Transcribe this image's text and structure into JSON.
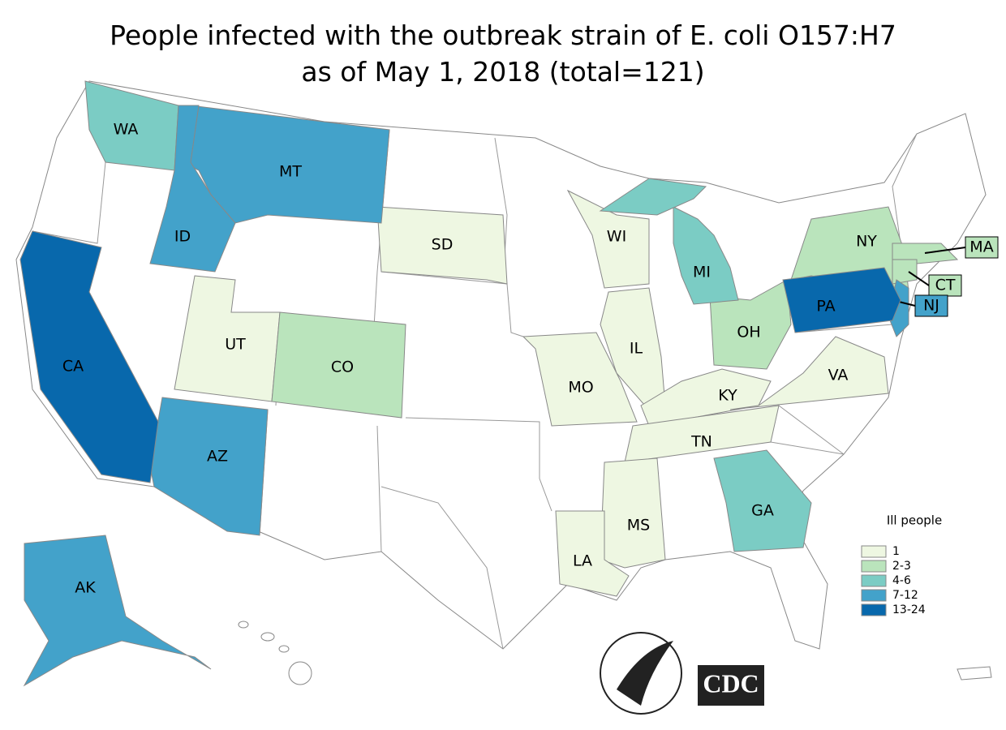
{
  "title": [
    "People infected with the outbreak strain of E. coli O157:H7",
    "as of May 1, 2018 (total=121)"
  ],
  "legend": {
    "title": "Ill people",
    "items": [
      {
        "label": "1",
        "color": "#eef7e2",
        "states": [
          "SD",
          "UT",
          "WI",
          "IL",
          "MO",
          "KY",
          "VA",
          "TN",
          "MS",
          "LA"
        ]
      },
      {
        "label": "2-3",
        "color": "#bae4bc",
        "states": [
          "NY",
          "MA",
          "CT",
          "OH",
          "CO"
        ]
      },
      {
        "label": "4-6",
        "color": "#7bccc4",
        "states": [
          "WA",
          "MI",
          "GA"
        ]
      },
      {
        "label": "7-12",
        "color": "#43a2ca",
        "states": [
          "MT",
          "ID",
          "AZ",
          "NJ",
          "AK"
        ]
      },
      {
        "label": "13-24",
        "color": "#0868ac",
        "states": [
          "CA",
          "PA"
        ]
      }
    ]
  },
  "logos": {
    "cdc": "CDC"
  }
}
